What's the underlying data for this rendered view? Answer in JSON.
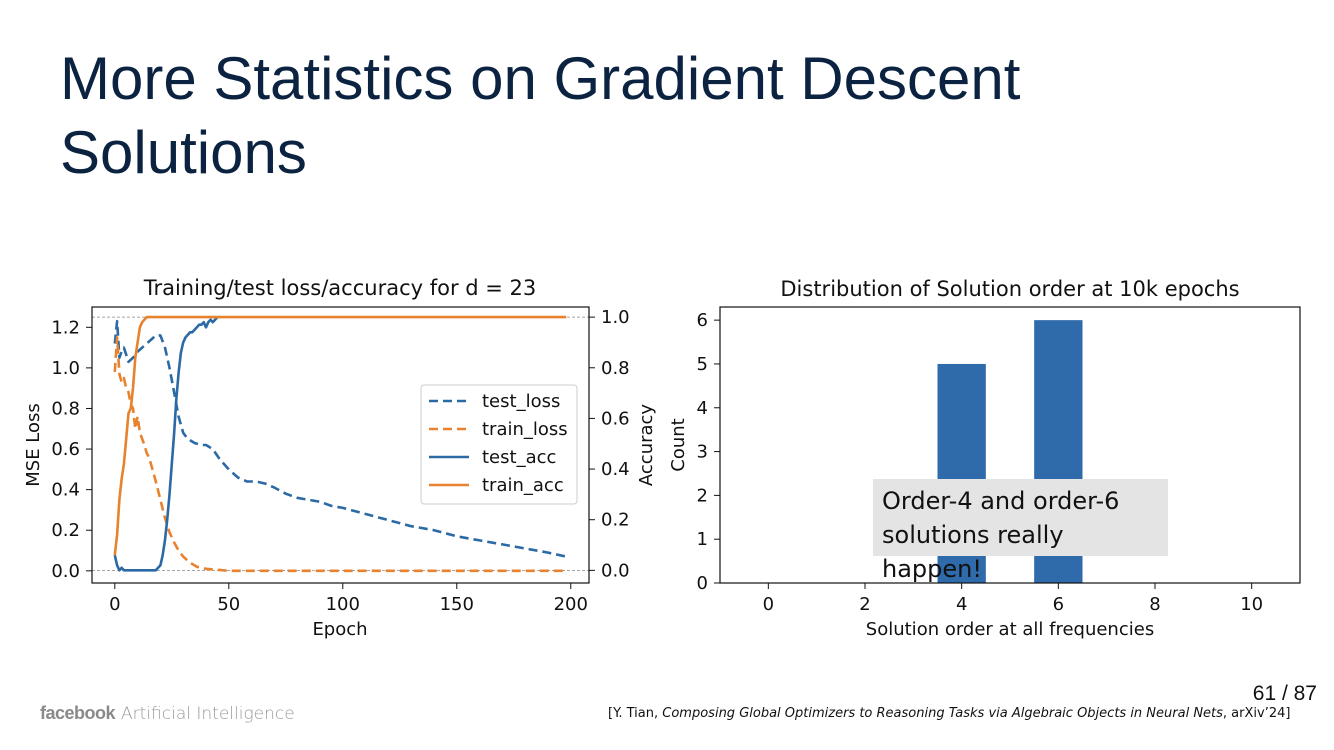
{
  "slide": {
    "title": "More Statistics on Gradient Descent Solutions",
    "annotation_line1": "Order-4 and order-6",
    "annotation_line2": "solutions really happen!",
    "page_number": "61 / 87",
    "footer_brand": "facebook",
    "footer_sub": "Artificial Intelligence",
    "citation_pre": "[Y. Tian, ",
    "citation_title": "Composing Global Optimizers to Reasoning Tasks via Algebraic Objects in Neural Nets",
    "citation_post": ", arXiv’24]"
  },
  "chart_data": [
    {
      "type": "line",
      "title": "Training/test loss/accuracy for d = 23",
      "xlabel": "Epoch",
      "ylabel": "MSE Loss",
      "ylabel_right": "Accuracy",
      "xlim": [
        -10,
        208
      ],
      "ylim": [
        -0.06,
        1.3
      ],
      "ylim_right": [
        -0.05,
        1.04
      ],
      "xticks": [
        0,
        50,
        100,
        150,
        200
      ],
      "yticks": [
        0.0,
        0.2,
        0.4,
        0.6,
        0.8,
        1.0,
        1.2
      ],
      "yticks_right": [
        0.0,
        0.2,
        0.4,
        0.6,
        0.8,
        1.0
      ],
      "legend": "center-right",
      "series": [
        {
          "name": "test_loss",
          "style": "dashed",
          "color": "#2c6aa5",
          "axis": "left",
          "x": [
            0,
            1,
            2,
            3,
            4,
            6,
            8,
            10,
            12,
            14,
            16,
            18,
            20,
            22,
            24,
            26,
            28,
            30,
            32,
            35,
            38,
            40,
            43,
            46,
            50,
            54,
            58,
            62,
            66,
            70,
            75,
            80,
            85,
            90,
            95,
            100,
            110,
            120,
            130,
            140,
            150,
            160,
            170,
            180,
            190,
            198
          ],
          "y": [
            1.12,
            1.23,
            1.05,
            1.08,
            1.1,
            1.03,
            1.05,
            1.08,
            1.1,
            1.12,
            1.14,
            1.16,
            1.16,
            1.1,
            1.0,
            0.88,
            0.76,
            0.68,
            0.65,
            0.63,
            0.62,
            0.62,
            0.6,
            0.55,
            0.5,
            0.46,
            0.44,
            0.44,
            0.43,
            0.41,
            0.38,
            0.36,
            0.35,
            0.34,
            0.32,
            0.31,
            0.28,
            0.25,
            0.22,
            0.2,
            0.17,
            0.15,
            0.13,
            0.11,
            0.09,
            0.07
          ]
        },
        {
          "name": "train_loss",
          "style": "dashed",
          "color": "#e8822f",
          "axis": "left",
          "x": [
            0,
            1,
            2,
            3,
            4,
            5,
            6,
            7,
            8,
            9,
            10,
            11,
            12,
            13,
            14,
            15,
            16,
            17,
            18,
            20,
            22,
            24,
            26,
            28,
            30,
            33,
            36,
            40,
            45,
            50,
            60,
            80,
            100,
            150,
            198
          ],
          "y": [
            0.98,
            1.15,
            0.97,
            0.93,
            0.95,
            0.9,
            0.88,
            0.82,
            0.8,
            0.7,
            0.76,
            0.68,
            0.65,
            0.62,
            0.58,
            0.56,
            0.52,
            0.48,
            0.44,
            0.35,
            0.26,
            0.19,
            0.14,
            0.1,
            0.07,
            0.04,
            0.02,
            0.01,
            0.005,
            0.0,
            0.0,
            0.0,
            0.0,
            0.0,
            0.0
          ]
        },
        {
          "name": "test_acc",
          "style": "solid",
          "color": "#2c6aa5",
          "axis": "right",
          "x": [
            0,
            1,
            2,
            3,
            4,
            5,
            6,
            8,
            10,
            12,
            14,
            16,
            18,
            19,
            20,
            21,
            22,
            23,
            24,
            25,
            26,
            27,
            28,
            29,
            30,
            31,
            32,
            33,
            34,
            35,
            36,
            37,
            38,
            39,
            40,
            41,
            42,
            43,
            44,
            45
          ],
          "y": [
            0.06,
            0.02,
            0.0,
            0.01,
            0.0,
            0.0,
            0.0,
            0.0,
            0.0,
            0.0,
            0.0,
            0.0,
            0.0,
            0.01,
            0.02,
            0.06,
            0.12,
            0.2,
            0.3,
            0.42,
            0.54,
            0.68,
            0.78,
            0.86,
            0.9,
            0.92,
            0.93,
            0.94,
            0.94,
            0.95,
            0.96,
            0.97,
            0.97,
            0.98,
            0.96,
            0.98,
            0.99,
            0.98,
            0.99,
            1.0
          ]
        },
        {
          "name": "train_acc",
          "style": "solid",
          "color": "#e8822f",
          "axis": "right",
          "x": [
            0,
            1,
            2,
            3,
            4,
            5,
            6,
            7,
            8,
            9,
            10,
            11,
            12,
            13,
            14,
            15,
            16,
            20,
            50,
            100,
            150,
            198
          ],
          "y": [
            0.06,
            0.14,
            0.28,
            0.36,
            0.42,
            0.52,
            0.62,
            0.64,
            0.72,
            0.84,
            0.9,
            0.96,
            0.98,
            0.99,
            1.0,
            1.0,
            1.0,
            1.0,
            1.0,
            1.0,
            1.0,
            1.0
          ]
        }
      ]
    },
    {
      "type": "bar",
      "title": "Distribution of Solution order at 10k epochs",
      "xlabel": "Solution order at all frequencies",
      "ylabel": "Count",
      "xlim": [
        -1.0,
        11.0
      ],
      "ylim": [
        0,
        6.3
      ],
      "xticks": [
        0,
        2,
        4,
        6,
        8,
        10
      ],
      "yticks": [
        0,
        1,
        2,
        3,
        4,
        5,
        6
      ],
      "bar_width": 1.0,
      "color": "#2f6aaa",
      "x": [
        4,
        6
      ],
      "values": [
        5,
        6
      ]
    }
  ]
}
